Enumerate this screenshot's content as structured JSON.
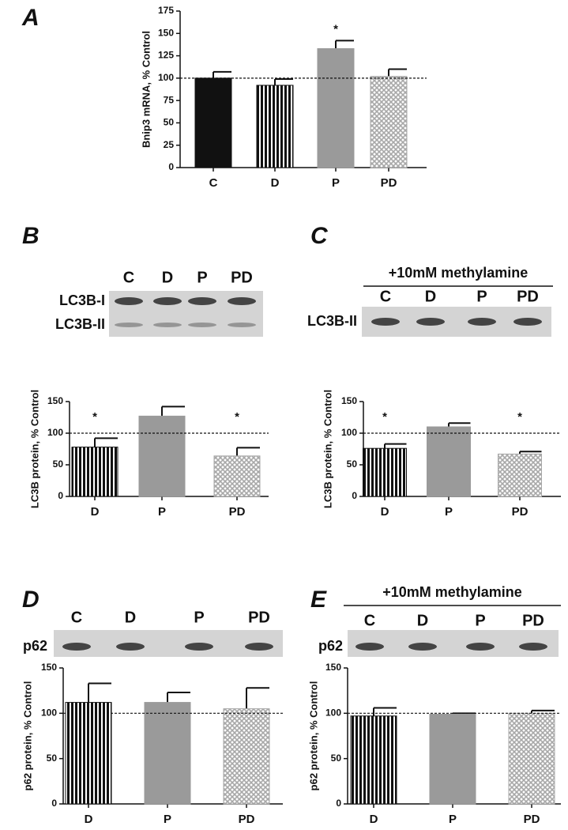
{
  "chart_data": [
    {
      "type": "bar",
      "panel": "A",
      "ylabel": "Bnip3 mRNA, % Control",
      "categories": [
        "C",
        "D",
        "P",
        "PD"
      ],
      "values": [
        100,
        92,
        133,
        102
      ],
      "errors": [
        7,
        7,
        9,
        8
      ],
      "colors": [
        "#111111",
        "#111111",
        "#9a9a9a",
        "#a8a8a8"
      ],
      "patterns": [
        "solid",
        "vertical-stripes",
        "solid",
        "crosshatch"
      ],
      "significance": [
        null,
        null,
        "*",
        null
      ],
      "reference_line": 100,
      "ylim": [
        0,
        175
      ],
      "yticks": [
        0,
        25,
        50,
        75,
        100,
        125,
        150,
        175
      ]
    },
    {
      "type": "bar",
      "panel": "B",
      "ylabel": "LC3B protein, % Control",
      "blot": {
        "lanes": [
          "C",
          "D",
          "P",
          "PD"
        ],
        "rows": [
          "LC3B-I",
          "LC3B-II"
        ]
      },
      "categories": [
        "D",
        "P",
        "PD"
      ],
      "values": [
        78,
        127,
        64
      ],
      "errors": [
        14,
        15,
        13
      ],
      "colors": [
        "#111111",
        "#9a9a9a",
        "#a8a8a8"
      ],
      "patterns": [
        "vertical-stripes",
        "solid",
        "crosshatch"
      ],
      "significance": [
        "*",
        null,
        "*"
      ],
      "reference_line": 100,
      "ylim": [
        0,
        150
      ],
      "yticks": [
        0,
        50,
        100,
        150
      ]
    },
    {
      "type": "bar",
      "panel": "C",
      "ylabel": "LC3B protein, % Control",
      "blot": {
        "header": "+10mM methylamine",
        "lanes": [
          "C",
          "D",
          "P",
          "PD"
        ],
        "rows": [
          "LC3B-II"
        ]
      },
      "categories": [
        "D",
        "P",
        "PD"
      ],
      "values": [
        76,
        110,
        67
      ],
      "errors": [
        7,
        6,
        4
      ],
      "colors": [
        "#111111",
        "#9a9a9a",
        "#a8a8a8"
      ],
      "patterns": [
        "vertical-stripes",
        "solid",
        "crosshatch"
      ],
      "significance": [
        "*",
        null,
        "*"
      ],
      "reference_line": 100,
      "ylim": [
        0,
        150
      ],
      "yticks": [
        0,
        50,
        100,
        150
      ]
    },
    {
      "type": "bar",
      "panel": "D",
      "ylabel": "p62 protein, % Control",
      "blot": {
        "lanes": [
          "C",
          "D",
          "P",
          "PD"
        ],
        "rows": [
          "p62"
        ]
      },
      "categories": [
        "D",
        "P",
        "PD"
      ],
      "values": [
        112,
        112,
        105
      ],
      "errors": [
        21,
        11,
        23
      ],
      "colors": [
        "#111111",
        "#9a9a9a",
        "#a8a8a8"
      ],
      "patterns": [
        "vertical-stripes",
        "solid",
        "crosshatch"
      ],
      "reference_line": 100,
      "ylim": [
        0,
        150
      ],
      "yticks": [
        0,
        50,
        100,
        150
      ]
    },
    {
      "type": "bar",
      "panel": "E",
      "ylabel": "p62 protein, % Control",
      "blot": {
        "header": "+10mM methylamine",
        "lanes": [
          "C",
          "D",
          "P",
          "PD"
        ],
        "rows": [
          "p62"
        ]
      },
      "categories": [
        "D",
        "P",
        "PD"
      ],
      "values": [
        97,
        99,
        100
      ],
      "errors": [
        9,
        1,
        3
      ],
      "colors": [
        "#111111",
        "#9a9a9a",
        "#a8a8a8"
      ],
      "patterns": [
        "vertical-stripes",
        "solid",
        "crosshatch"
      ],
      "reference_line": 100,
      "ylim": [
        0,
        150
      ],
      "yticks": [
        0,
        50,
        100,
        150
      ]
    }
  ]
}
